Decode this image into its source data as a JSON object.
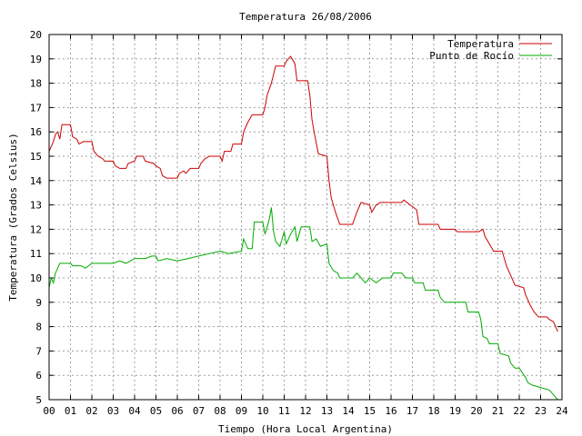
{
  "chart_data": {
    "type": "line",
    "title": "Temperatura 26/08/2006",
    "xlabel": "Tiempo (Hora Local Argentina)",
    "ylabel": "Temperatura (Grados Celsius)",
    "xlim": [
      0,
      24
    ],
    "ylim": [
      5,
      20
    ],
    "grid": true,
    "legend_position": "top-right",
    "x_tick_labels": [
      "00",
      "01",
      "02",
      "03",
      "04",
      "05",
      "06",
      "07",
      "08",
      "09",
      "10",
      "11",
      "12",
      "13",
      "14",
      "15",
      "16",
      "17",
      "18",
      "19",
      "20",
      "21",
      "22",
      "23",
      "24"
    ],
    "y_tick_labels": [
      "5",
      "6",
      "7",
      "8",
      "9",
      "10",
      "11",
      "12",
      "13",
      "14",
      "15",
      "16",
      "17",
      "18",
      "19",
      "20"
    ],
    "series": [
      {
        "name": "Temperatura",
        "color": "#cc0000",
        "points": [
          [
            0.0,
            15.2
          ],
          [
            0.2,
            15.6
          ],
          [
            0.3,
            15.9
          ],
          [
            0.4,
            16.0
          ],
          [
            0.5,
            15.7
          ],
          [
            0.6,
            16.3
          ],
          [
            1.0,
            16.3
          ],
          [
            1.1,
            15.8
          ],
          [
            1.3,
            15.7
          ],
          [
            1.4,
            15.5
          ],
          [
            1.6,
            15.6
          ],
          [
            2.0,
            15.6
          ],
          [
            2.1,
            15.2
          ],
          [
            2.3,
            15.0
          ],
          [
            2.5,
            14.9
          ],
          [
            2.6,
            14.8
          ],
          [
            3.0,
            14.8
          ],
          [
            3.1,
            14.6
          ],
          [
            3.3,
            14.5
          ],
          [
            3.6,
            14.5
          ],
          [
            3.7,
            14.7
          ],
          [
            4.0,
            14.8
          ],
          [
            4.1,
            15.0
          ],
          [
            4.4,
            15.0
          ],
          [
            4.5,
            14.8
          ],
          [
            4.9,
            14.7
          ],
          [
            5.0,
            14.6
          ],
          [
            5.2,
            14.5
          ],
          [
            5.3,
            14.2
          ],
          [
            5.5,
            14.1
          ],
          [
            6.0,
            14.1
          ],
          [
            6.1,
            14.3
          ],
          [
            6.3,
            14.4
          ],
          [
            6.4,
            14.3
          ],
          [
            6.6,
            14.5
          ],
          [
            7.0,
            14.5
          ],
          [
            7.1,
            14.7
          ],
          [
            7.3,
            14.9
          ],
          [
            7.5,
            15.0
          ],
          [
            8.0,
            15.0
          ],
          [
            8.1,
            14.8
          ],
          [
            8.2,
            15.2
          ],
          [
            8.5,
            15.2
          ],
          [
            8.6,
            15.5
          ],
          [
            9.0,
            15.5
          ],
          [
            9.1,
            16.0
          ],
          [
            9.3,
            16.4
          ],
          [
            9.5,
            16.7
          ],
          [
            10.0,
            16.7
          ],
          [
            10.1,
            17.0
          ],
          [
            10.2,
            17.5
          ],
          [
            10.4,
            18.0
          ],
          [
            10.6,
            18.7
          ],
          [
            11.0,
            18.7
          ],
          [
            11.1,
            18.9
          ],
          [
            11.3,
            19.1
          ],
          [
            11.5,
            18.8
          ],
          [
            11.6,
            18.1
          ],
          [
            12.1,
            18.1
          ],
          [
            12.2,
            17.5
          ],
          [
            12.3,
            16.5
          ],
          [
            12.4,
            16.0
          ],
          [
            12.6,
            15.1
          ],
          [
            13.0,
            15.0
          ],
          [
            13.1,
            14.0
          ],
          [
            13.2,
            13.3
          ],
          [
            13.4,
            12.7
          ],
          [
            13.6,
            12.2
          ],
          [
            14.2,
            12.2
          ],
          [
            14.4,
            12.7
          ],
          [
            14.6,
            13.1
          ],
          [
            15.0,
            13.0
          ],
          [
            15.1,
            12.7
          ],
          [
            15.3,
            13.0
          ],
          [
            15.5,
            13.1
          ],
          [
            16.5,
            13.1
          ],
          [
            16.6,
            13.2
          ],
          [
            16.9,
            13.0
          ],
          [
            17.2,
            12.8
          ],
          [
            17.3,
            12.2
          ],
          [
            18.2,
            12.2
          ],
          [
            18.3,
            12.0
          ],
          [
            19.0,
            12.0
          ],
          [
            19.1,
            11.9
          ],
          [
            20.1,
            11.9
          ],
          [
            20.3,
            12.0
          ],
          [
            20.4,
            11.7
          ],
          [
            20.6,
            11.4
          ],
          [
            20.8,
            11.1
          ],
          [
            21.2,
            11.1
          ],
          [
            21.4,
            10.5
          ],
          [
            21.6,
            10.1
          ],
          [
            21.8,
            9.7
          ],
          [
            22.2,
            9.6
          ],
          [
            22.3,
            9.3
          ],
          [
            22.5,
            8.9
          ],
          [
            22.7,
            8.6
          ],
          [
            22.9,
            8.4
          ],
          [
            23.3,
            8.4
          ],
          [
            23.4,
            8.3
          ],
          [
            23.6,
            8.2
          ],
          [
            23.8,
            7.8
          ]
        ]
      },
      {
        "name": "Punto de Rocío",
        "color": "#00aa00",
        "points": [
          [
            0.0,
            9.6
          ],
          [
            0.1,
            10.0
          ],
          [
            0.2,
            9.8
          ],
          [
            0.3,
            10.2
          ],
          [
            0.5,
            10.6
          ],
          [
            1.0,
            10.6
          ],
          [
            1.1,
            10.5
          ],
          [
            1.5,
            10.5
          ],
          [
            1.7,
            10.4
          ],
          [
            2.0,
            10.6
          ],
          [
            3.0,
            10.6
          ],
          [
            3.3,
            10.7
          ],
          [
            3.6,
            10.6
          ],
          [
            4.0,
            10.8
          ],
          [
            4.5,
            10.8
          ],
          [
            4.8,
            10.9
          ],
          [
            5.0,
            10.9
          ],
          [
            5.1,
            10.7
          ],
          [
            5.5,
            10.8
          ],
          [
            6.0,
            10.7
          ],
          [
            6.5,
            10.8
          ],
          [
            7.0,
            10.9
          ],
          [
            7.5,
            11.0
          ],
          [
            8.0,
            11.1
          ],
          [
            8.4,
            11.0
          ],
          [
            9.0,
            11.1
          ],
          [
            9.1,
            11.6
          ],
          [
            9.3,
            11.2
          ],
          [
            9.5,
            11.2
          ],
          [
            9.6,
            12.3
          ],
          [
            10.0,
            12.3
          ],
          [
            10.1,
            11.8
          ],
          [
            10.3,
            12.4
          ],
          [
            10.4,
            12.9
          ],
          [
            10.5,
            11.9
          ],
          [
            10.6,
            11.5
          ],
          [
            10.8,
            11.3
          ],
          [
            11.0,
            11.9
          ],
          [
            11.1,
            11.4
          ],
          [
            11.3,
            11.8
          ],
          [
            11.5,
            12.1
          ],
          [
            11.6,
            11.5
          ],
          [
            11.8,
            12.1
          ],
          [
            12.2,
            12.1
          ],
          [
            12.3,
            11.5
          ],
          [
            12.5,
            11.6
          ],
          [
            12.7,
            11.3
          ],
          [
            13.0,
            11.4
          ],
          [
            13.1,
            10.6
          ],
          [
            13.3,
            10.3
          ],
          [
            13.5,
            10.2
          ],
          [
            13.6,
            10.0
          ],
          [
            14.2,
            10.0
          ],
          [
            14.4,
            10.2
          ],
          [
            14.6,
            10.0
          ],
          [
            14.8,
            9.8
          ],
          [
            15.0,
            10.0
          ],
          [
            15.3,
            9.8
          ],
          [
            15.6,
            10.0
          ],
          [
            16.0,
            10.0
          ],
          [
            16.1,
            10.2
          ],
          [
            16.5,
            10.2
          ],
          [
            16.7,
            10.0
          ],
          [
            17.0,
            10.0
          ],
          [
            17.1,
            9.8
          ],
          [
            17.5,
            9.8
          ],
          [
            17.6,
            9.5
          ],
          [
            18.2,
            9.5
          ],
          [
            18.3,
            9.2
          ],
          [
            18.5,
            9.0
          ],
          [
            19.5,
            9.0
          ],
          [
            19.6,
            8.6
          ],
          [
            20.1,
            8.6
          ],
          [
            20.2,
            8.3
          ],
          [
            20.3,
            7.6
          ],
          [
            20.5,
            7.5
          ],
          [
            20.6,
            7.3
          ],
          [
            21.0,
            7.3
          ],
          [
            21.1,
            6.9
          ],
          [
            21.5,
            6.8
          ],
          [
            21.6,
            6.5
          ],
          [
            21.8,
            6.3
          ],
          [
            22.0,
            6.3
          ],
          [
            22.3,
            5.9
          ],
          [
            22.4,
            5.7
          ],
          [
            22.6,
            5.6
          ],
          [
            23.0,
            5.5
          ],
          [
            23.4,
            5.4
          ],
          [
            23.6,
            5.2
          ],
          [
            23.8,
            5.0
          ]
        ]
      }
    ]
  }
}
